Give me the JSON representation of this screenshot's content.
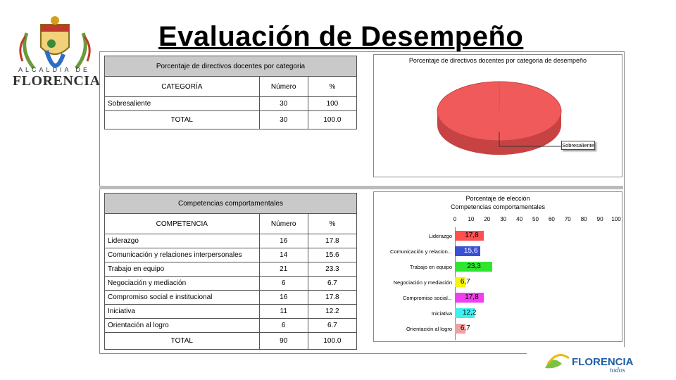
{
  "slide": {
    "title": "Evaluación de Desempeño"
  },
  "logo": {
    "top_text": "ALCALDIA DE",
    "city": "FLORENCIA"
  },
  "footer_logo": {
    "text": "FLORENCIA",
    "sub": "todos"
  },
  "table1": {
    "caption": "Porcentaje de directivos docentes por categoria",
    "headers": [
      "CATEGORÍA",
      "Número",
      "%"
    ],
    "rows": [
      [
        "Sobresaliente",
        "30",
        "100"
      ]
    ],
    "total": [
      "TOTAL",
      "30",
      "100.0"
    ]
  },
  "table2": {
    "caption": "Competencias comportamentales",
    "headers": [
      "COMPETENCIA",
      "Número",
      "%"
    ],
    "rows": [
      [
        "Liderazgo",
        "16",
        "17.8"
      ],
      [
        "Comunicación y relaciones interpersonales",
        "14",
        "15.6"
      ],
      [
        "Trabajo en equipo",
        "21",
        "23.3"
      ],
      [
        "Negociación y mediación",
        "6",
        "6.7"
      ],
      [
        "Compromiso social e institucional",
        "16",
        "17.8"
      ],
      [
        "Iniciativa",
        "11",
        "12.2"
      ],
      [
        "Orientación al logro",
        "6",
        "6.7"
      ]
    ],
    "total": [
      "TOTAL",
      "90",
      "100.0"
    ]
  },
  "chart_data": [
    {
      "type": "pie",
      "title": "Porcentaje de directivos docentes por categoria de desempeño",
      "labels": [
        "Sobresaliente"
      ],
      "values": [
        100
      ],
      "colors": [
        "#f05a5a"
      ],
      "annotation": "Sobresaliente"
    },
    {
      "type": "bar",
      "orientation": "horizontal",
      "title": "Porcentaje de elección",
      "subtitle": "Competencias comportamentales",
      "categories": [
        "Liderazgo",
        "Comunicación y relacion...",
        "Trabajo en equipo",
        "Negociación y mediación",
        "Compromiso social...",
        "Iniciativa",
        "Orientación al logro"
      ],
      "values": [
        17.8,
        15.6,
        23.3,
        6.7,
        17.8,
        12.2,
        6.7
      ],
      "value_labels": [
        "17,8",
        "15,6",
        "23,3",
        "6,7",
        "17,8",
        "12,2",
        "6,7"
      ],
      "colors": [
        "#ff4f4f",
        "#3b4fd6",
        "#2fe62f",
        "#f5f50a",
        "#f03ff0",
        "#3ff0f0",
        "#f0a0a0"
      ],
      "xlim": [
        0,
        100
      ],
      "ticks": [
        "0",
        "10",
        "20",
        "30",
        "40",
        "50",
        "60",
        "70",
        "80",
        "90",
        "100"
      ]
    }
  ]
}
